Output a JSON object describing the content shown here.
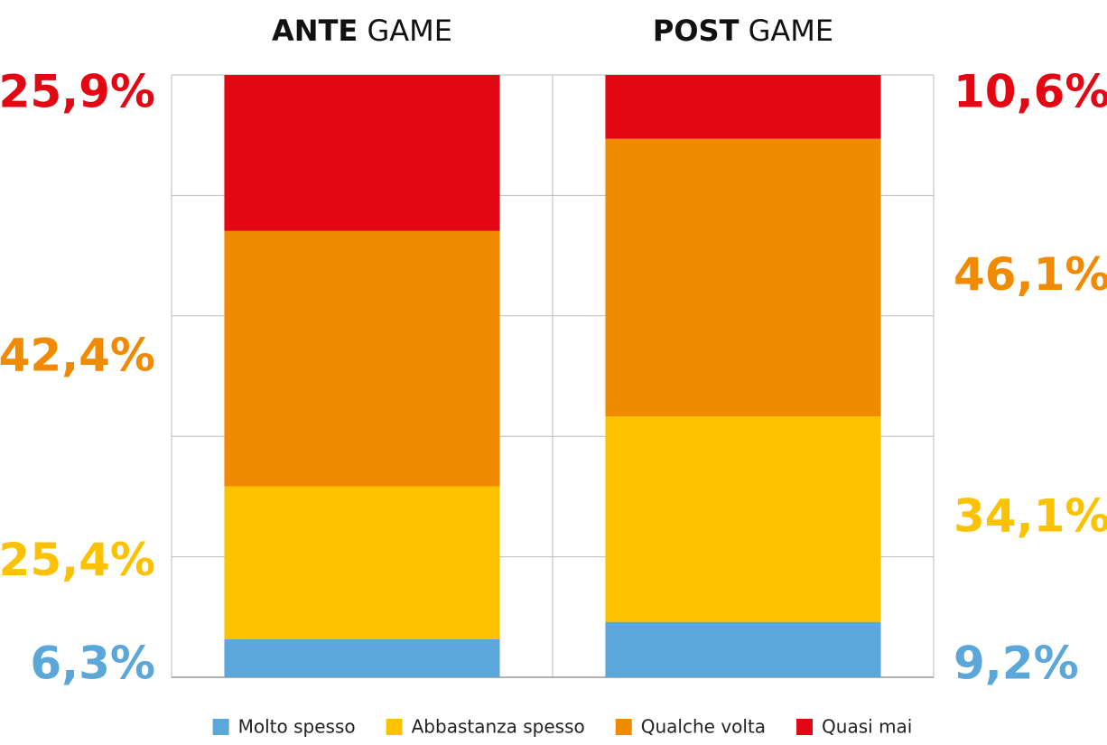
{
  "chart_data": {
    "type": "stacked_bar",
    "categories": [
      "ANTE GAME",
      "POST GAME"
    ],
    "series": [
      {
        "name": "Molto spesso",
        "color": "#5ba7d9",
        "values": [
          6.3,
          9.2
        ],
        "value_labels": [
          "6,3%",
          "9,2%"
        ]
      },
      {
        "name": "Abbastanza spesso",
        "color": "#fcc200",
        "values": [
          25.4,
          34.1
        ],
        "value_labels": [
          "25,4%",
          "34,1%"
        ]
      },
      {
        "name": "Qualche volta",
        "color": "#f08a00",
        "values": [
          42.4,
          46.1
        ],
        "value_labels": [
          "42,4%",
          "46,1%"
        ]
      },
      {
        "name": "Quasi mai",
        "color": "#e30613",
        "values": [
          25.9,
          10.6
        ],
        "value_labels": [
          "25,9%",
          "10,6%"
        ]
      }
    ],
    "ylim": [
      0,
      100
    ],
    "yticks": [
      0,
      20,
      40,
      60,
      80,
      100
    ],
    "grid": true,
    "legend": "bottom"
  }
}
